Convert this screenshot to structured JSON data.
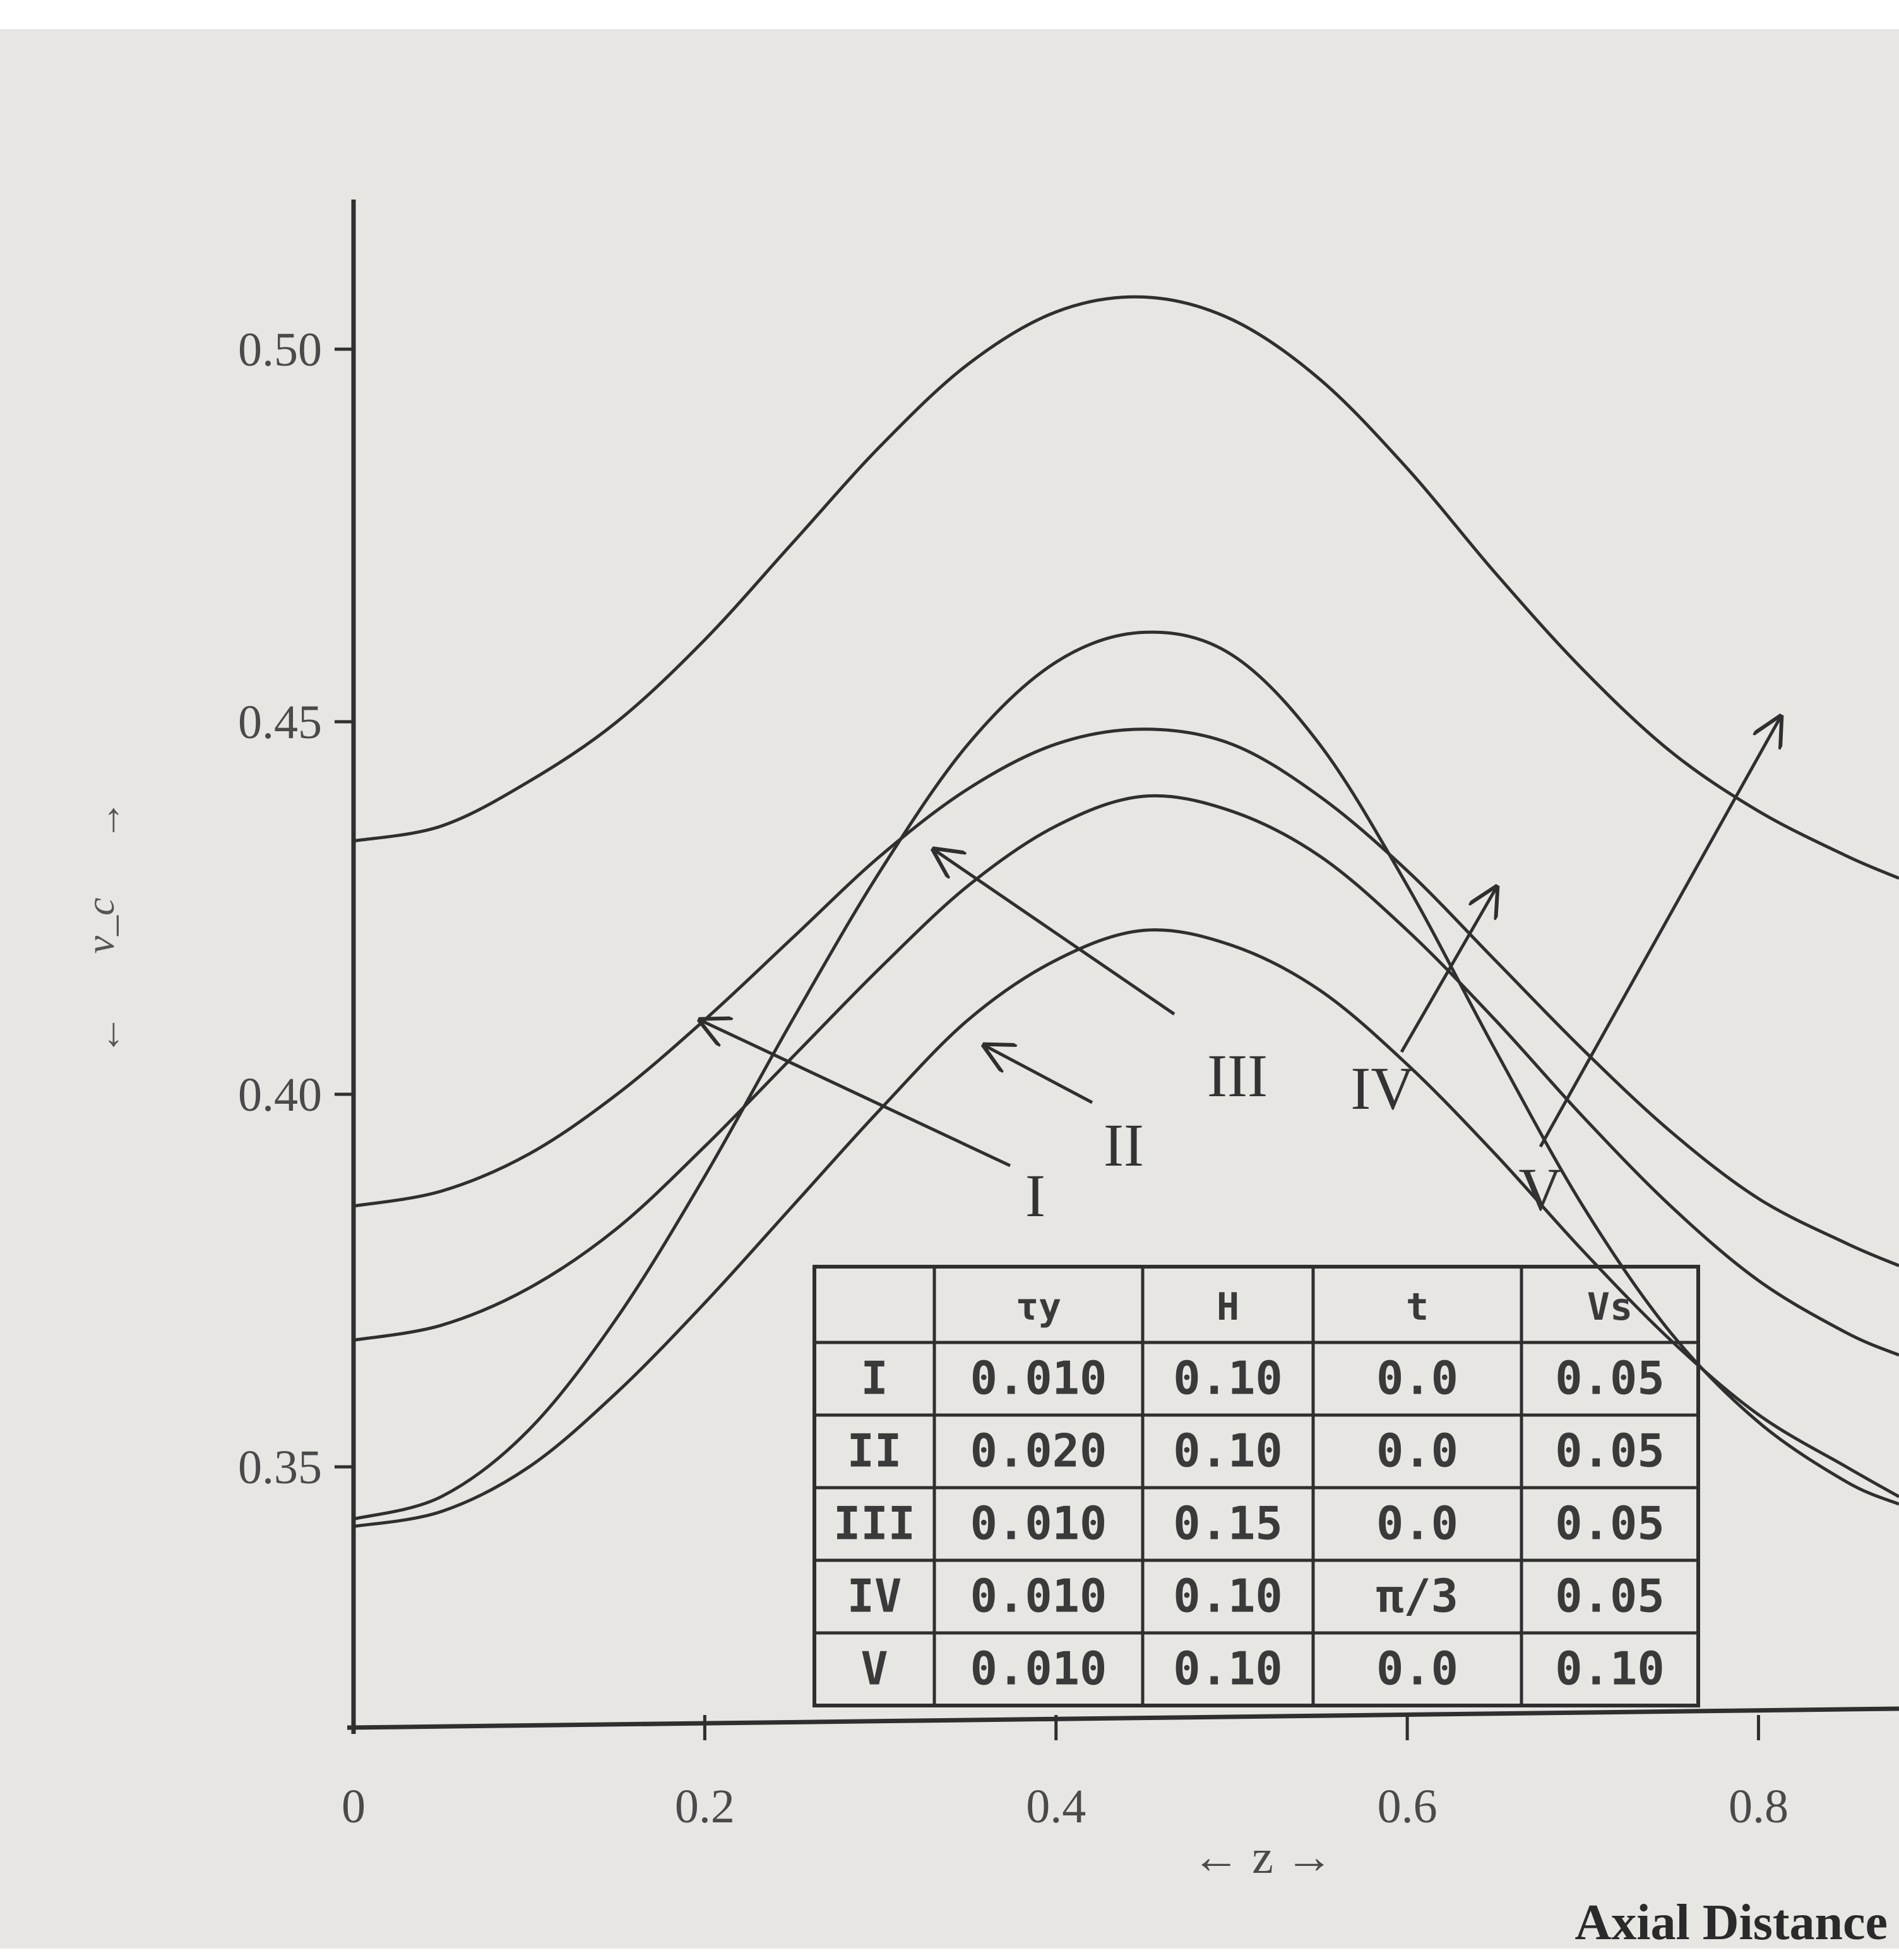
{
  "chart_data": {
    "type": "line",
    "x_ticks": [
      "0",
      "0.2",
      "0.4",
      "0.6",
      "0.8"
    ],
    "y_ticks": [
      "0.35",
      "0.40",
      "0.45",
      "0.50"
    ],
    "xlabel": "← z →",
    "ylabel_arrow_up": "↑",
    "ylabel": "v_c",
    "ylabel_arrow_down": "↓",
    "xlim": [
      0,
      0.88
    ],
    "ylim": [
      0.315,
      0.515
    ],
    "grid": false,
    "series": [
      {
        "name": "I",
        "x": [
          0,
          0.05,
          0.1,
          0.15,
          0.2,
          0.25,
          0.3,
          0.35,
          0.4,
          0.45,
          0.5,
          0.55,
          0.6,
          0.65,
          0.7,
          0.75,
          0.8,
          0.85,
          0.88
        ],
        "y": [
          0.385,
          0.387,
          0.392,
          0.4,
          0.41,
          0.421,
          0.432,
          0.441,
          0.447,
          0.449,
          0.447,
          0.44,
          0.43,
          0.418,
          0.406,
          0.395,
          0.386,
          0.38,
          0.377
        ]
      },
      {
        "name": "II",
        "x": [
          0,
          0.05,
          0.1,
          0.15,
          0.2,
          0.25,
          0.3,
          0.35,
          0.4,
          0.45,
          0.5,
          0.55,
          0.6,
          0.65,
          0.7,
          0.75,
          0.8,
          0.85,
          0.88
        ],
        "y": [
          0.342,
          0.344,
          0.35,
          0.36,
          0.372,
          0.385,
          0.398,
          0.41,
          0.418,
          0.422,
          0.42,
          0.414,
          0.404,
          0.392,
          0.379,
          0.367,
          0.357,
          0.35,
          0.346
        ]
      },
      {
        "name": "III",
        "x": [
          0,
          0.05,
          0.1,
          0.15,
          0.2,
          0.25,
          0.3,
          0.35,
          0.4,
          0.45,
          0.5,
          0.55,
          0.6,
          0.65,
          0.7,
          0.75,
          0.8,
          0.85,
          0.88
        ],
        "y": [
          0.343,
          0.346,
          0.355,
          0.37,
          0.389,
          0.41,
          0.43,
          0.447,
          0.458,
          0.462,
          0.459,
          0.447,
          0.428,
          0.406,
          0.385,
          0.368,
          0.356,
          0.348,
          0.345
        ]
      },
      {
        "name": "IV",
        "x": [
          0,
          0.05,
          0.1,
          0.15,
          0.2,
          0.25,
          0.3,
          0.35,
          0.4,
          0.45,
          0.5,
          0.55,
          0.6,
          0.65,
          0.7,
          0.75,
          0.8,
          0.85,
          0.88
        ],
        "y": [
          0.367,
          0.369,
          0.374,
          0.382,
          0.393,
          0.405,
          0.417,
          0.428,
          0.436,
          0.44,
          0.438,
          0.432,
          0.422,
          0.41,
          0.397,
          0.385,
          0.375,
          0.368,
          0.365
        ]
      },
      {
        "name": "V",
        "x": [
          0,
          0.05,
          0.1,
          0.15,
          0.2,
          0.25,
          0.3,
          0.35,
          0.4,
          0.45,
          0.5,
          0.55,
          0.6,
          0.65,
          0.7,
          0.75,
          0.8,
          0.85,
          0.88
        ],
        "y": [
          0.434,
          0.436,
          0.442,
          0.45,
          0.461,
          0.474,
          0.487,
          0.498,
          0.505,
          0.507,
          0.504,
          0.496,
          0.484,
          0.47,
          0.457,
          0.446,
          0.438,
          0.432,
          0.429
        ]
      }
    ],
    "annotations": [
      "I",
      "II",
      "III",
      "IV",
      "V"
    ],
    "table": {
      "headers": [
        "",
        "τy",
        "H",
        "t",
        "Vs"
      ],
      "rows": [
        [
          "I",
          "0.010",
          "0.10",
          "0.0",
          "0.05"
        ],
        [
          "II",
          "0.020",
          "0.10",
          "0.0",
          "0.05"
        ],
        [
          "III",
          "0.010",
          "0.15",
          "0.0",
          "0.05"
        ],
        [
          "IV",
          "0.010",
          "0.10",
          "π/3",
          "0.05"
        ],
        [
          "V",
          "0.010",
          "0.10",
          "0.0",
          "0.10"
        ]
      ]
    },
    "caption_fragment": "Axial Distance"
  },
  "colors": {
    "ink": "#2f2f2f",
    "paper": "#e7e6e2"
  }
}
